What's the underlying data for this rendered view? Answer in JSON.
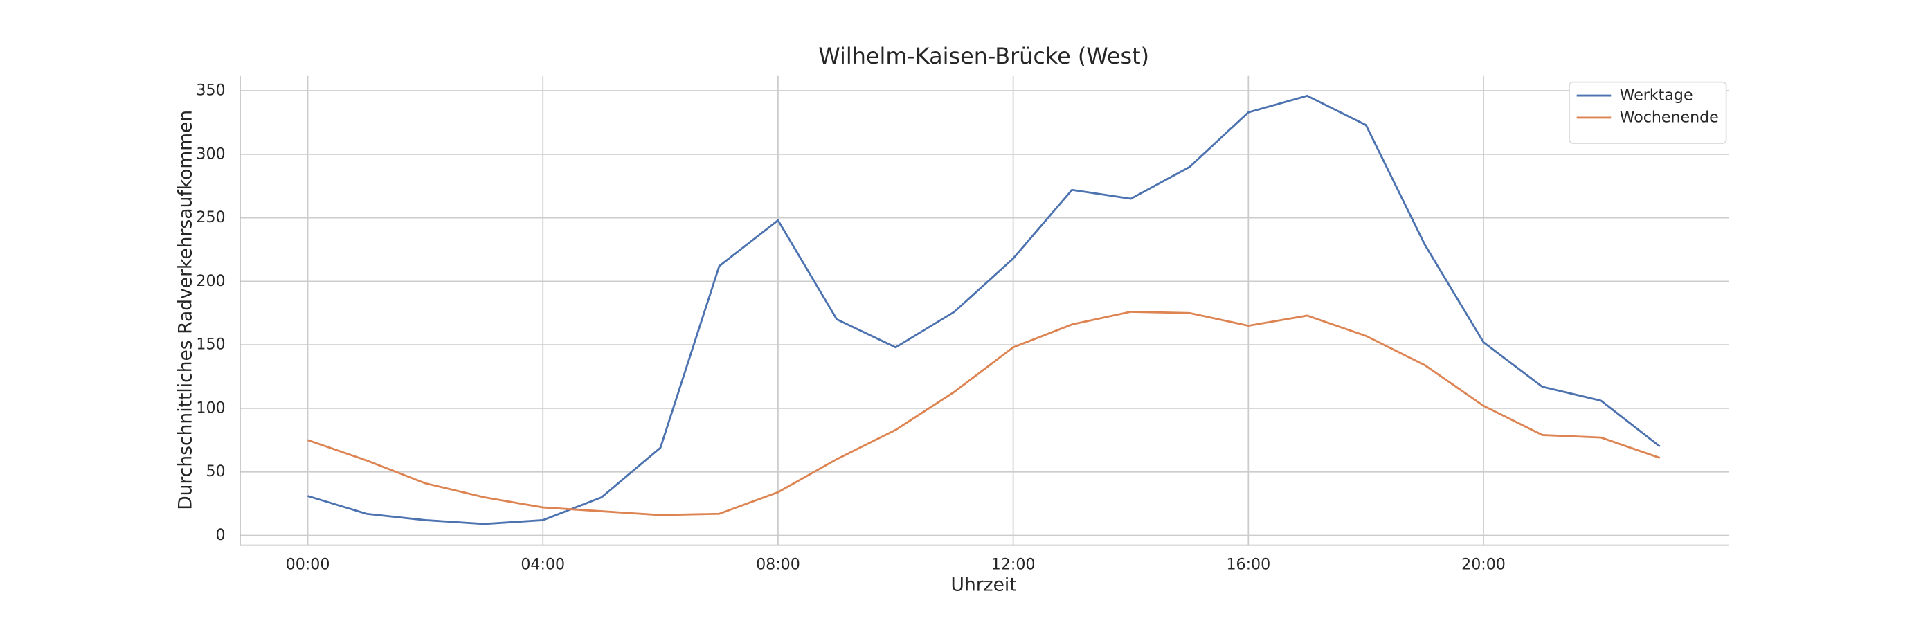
{
  "chart_data": {
    "type": "line",
    "title": "Wilhelm-Kaisen-Brücke (West)",
    "xlabel": "Uhrzeit",
    "ylabel": "Durchschnittliches Radverkehrsaufkommen",
    "x": [
      0,
      1,
      2,
      3,
      4,
      5,
      6,
      7,
      8,
      9,
      10,
      11,
      12,
      13,
      14,
      15,
      16,
      17,
      18,
      19,
      20,
      21,
      22,
      23
    ],
    "series": [
      {
        "name": "Werktage",
        "color": "#4c72b0",
        "values": [
          31,
          17,
          12,
          9,
          12,
          30,
          69,
          212,
          248,
          170,
          148,
          176,
          218,
          272,
          265,
          290,
          333,
          346,
          323,
          229,
          152,
          117,
          106,
          70
        ]
      },
      {
        "name": "Wochenende",
        "color": "#dd8452",
        "values": [
          75,
          59,
          41,
          30,
          22,
          19,
          16,
          17,
          34,
          60,
          83,
          113,
          148,
          166,
          176,
          175,
          165,
          173,
          157,
          134,
          102,
          79,
          77,
          61
        ]
      }
    ],
    "xlim": [
      -1.15,
      24.17
    ],
    "ylim": [
      -7.7,
      361.6
    ],
    "xticks": [
      {
        "value": 0,
        "label": "00:00"
      },
      {
        "value": 4,
        "label": "04:00"
      },
      {
        "value": 8,
        "label": "08:00"
      },
      {
        "value": 12,
        "label": "12:00"
      },
      {
        "value": 16,
        "label": "16:00"
      },
      {
        "value": 20,
        "label": "20:00"
      }
    ],
    "yticks": [
      0,
      50,
      100,
      150,
      200,
      250,
      300,
      350
    ],
    "grid": true,
    "legend": "upper right"
  }
}
